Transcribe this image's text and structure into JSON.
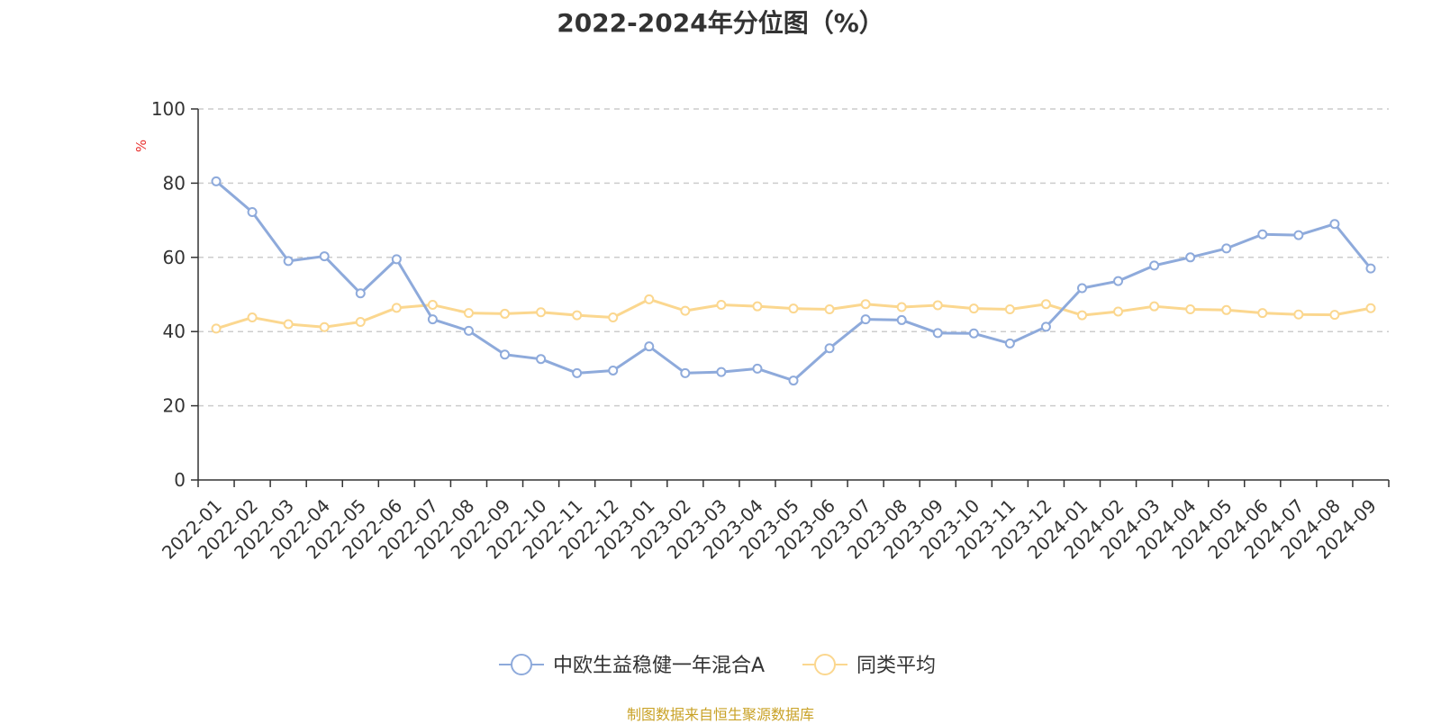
{
  "chart_data": {
    "type": "line",
    "title": "2022-2024年分位图（%）",
    "ylabel": "%",
    "ylim": [
      0,
      100
    ],
    "yticks": [
      0,
      20,
      40,
      60,
      80,
      100
    ],
    "grid": true,
    "legend_position": "bottom",
    "categories": [
      "2022-01",
      "2022-02",
      "2022-03",
      "2022-04",
      "2022-05",
      "2022-06",
      "2022-07",
      "2022-08",
      "2022-09",
      "2022-10",
      "2022-11",
      "2022-12",
      "2023-01",
      "2023-02",
      "2023-03",
      "2023-04",
      "2023-05",
      "2023-06",
      "2023-07",
      "2023-08",
      "2023-09",
      "2023-10",
      "2023-11",
      "2023-12",
      "2024-01",
      "2024-02",
      "2024-03",
      "2024-04",
      "2024-05",
      "2024-06",
      "2024-07",
      "2024-08",
      "2024-09"
    ],
    "series": [
      {
        "name": "中欧生益稳健一年混合A",
        "color": "#8eaadb",
        "values": [
          80.5,
          72.2,
          59.0,
          60.3,
          50.3,
          59.5,
          43.3,
          40.2,
          33.8,
          32.6,
          28.8,
          29.5,
          36.0,
          28.8,
          29.1,
          30.0,
          26.8,
          35.5,
          43.3,
          43.1,
          39.6,
          39.5,
          36.8,
          41.3,
          51.7,
          53.6,
          57.8,
          60.0,
          62.4,
          66.2,
          66.0,
          69.0,
          57.0
        ]
      },
      {
        "name": "同类平均",
        "color": "#fbd78f",
        "values": [
          40.8,
          43.8,
          42.0,
          41.2,
          42.6,
          46.4,
          47.2,
          45.0,
          44.8,
          45.2,
          44.4,
          43.8,
          48.7,
          45.6,
          47.2,
          46.8,
          46.2,
          46.0,
          47.4,
          46.6,
          47.1,
          46.2,
          46.0,
          47.4,
          44.4,
          45.4,
          46.8,
          46.0,
          45.8,
          45.0,
          44.6,
          44.5,
          46.3
        ]
      }
    ]
  },
  "source_text": "制图数据来自恒生聚源数据库"
}
